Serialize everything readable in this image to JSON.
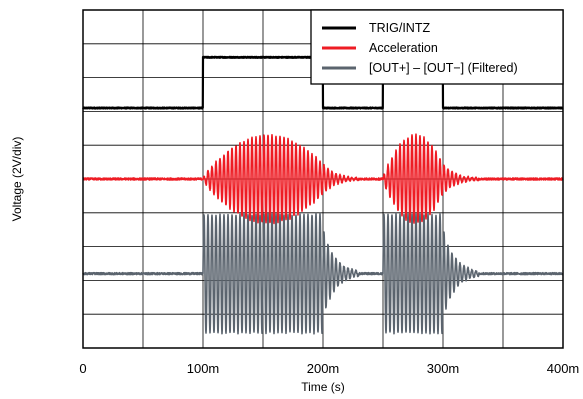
{
  "chart_data": {
    "type": "line",
    "title": "",
    "xlabel": "Time (s)",
    "ylabel": "Voltage (2V/div)",
    "xlim": [
      0,
      0.4
    ],
    "x_ticks": [
      0,
      0.1,
      0.2,
      0.3,
      0.4
    ],
    "x_tick_labels": [
      "0",
      "100m",
      "200m",
      "300m",
      "400m"
    ],
    "ylim": [
      -10,
      10
    ],
    "y_divisions": 10,
    "volts_per_division": 2,
    "x_divisions": 8,
    "grid": true,
    "legend_position": "top-right",
    "series": [
      {
        "name": "TRIG/INTZ",
        "color": "#000000",
        "kind": "pulse",
        "baseline": 4.2,
        "high": 7.2,
        "pulses": [
          [
            0.1,
            0.2
          ],
          [
            0.25,
            0.3
          ]
        ]
      },
      {
        "name": "Acceleration",
        "color": "#ee1c24",
        "kind": "burst",
        "baseline": 0.0,
        "amplitude": 2.6,
        "bursts": [
          [
            0.1,
            0.2
          ],
          [
            0.25,
            0.3
          ]
        ],
        "ringdown": 0.01,
        "cycles_per_second": 300
      },
      {
        "name": "[OUT+] – [OUT−] (Filtered)",
        "color": "#5b646e",
        "kind": "burst",
        "baseline": -5.6,
        "amplitude": 3.5,
        "bursts": [
          [
            0.1,
            0.2
          ],
          [
            0.25,
            0.3
          ]
        ],
        "ringdown": 0.01,
        "cycles_per_second": 300
      }
    ]
  }
}
